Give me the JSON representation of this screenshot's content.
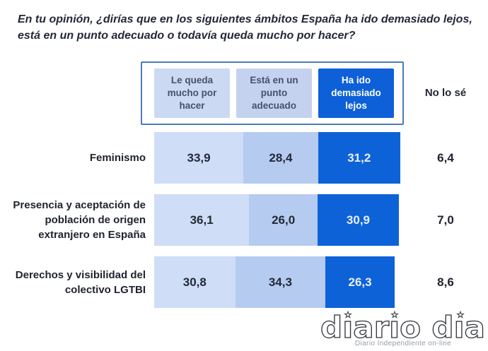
{
  "title": "En tu opinión, ¿dirías que en los siguientes ámbitos España ha ido demasiado lejos,\nestá en un punto adecuado o todavía queda mucho por hacer?",
  "legend": {
    "items": [
      {
        "label": "Le queda mucho por hacer",
        "color": "#ccd9f3"
      },
      {
        "label": "Está en un punto adecuado",
        "color": "#c4d2ef"
      },
      {
        "label": "Ha ido demasiado lejos",
        "color": "#0d60d7"
      }
    ],
    "dont_know_label": "No lo sé"
  },
  "chart_data": {
    "type": "bar",
    "subtype": "horizontal-stacked",
    "unit": "percent",
    "title": "En tu opinión, ¿dirías que en los siguientes ámbitos España ha ido demasiado lejos, está en un punto adecuado o todavía queda mucho por hacer?",
    "categories": [
      "Feminismo",
      "Presencia y aceptación de población de origen extranjero en España",
      "Derechos y visibilidad del colectivo LGTBI"
    ],
    "series": [
      {
        "name": "Le queda mucho por hacer",
        "color": "#cfddf7",
        "values": [
          33.9,
          36.1,
          30.8
        ]
      },
      {
        "name": "Está en un punto adecuado",
        "color": "#b5cbf0",
        "values": [
          28.4,
          26.0,
          34.3
        ]
      },
      {
        "name": "Ha ido demasiado lejos",
        "color": "#0e62d8",
        "values": [
          31.2,
          30.9,
          26.3
        ]
      },
      {
        "name": "No lo sé",
        "color": null,
        "values": [
          6.4,
          7.0,
          8.6
        ]
      }
    ],
    "value_labels_format": "comma-decimal",
    "legend_position": "top",
    "xlim": [
      0,
      100
    ]
  },
  "watermark": {
    "logo_text": "diario dia",
    "tagline": "Diario Independiente on-line"
  }
}
